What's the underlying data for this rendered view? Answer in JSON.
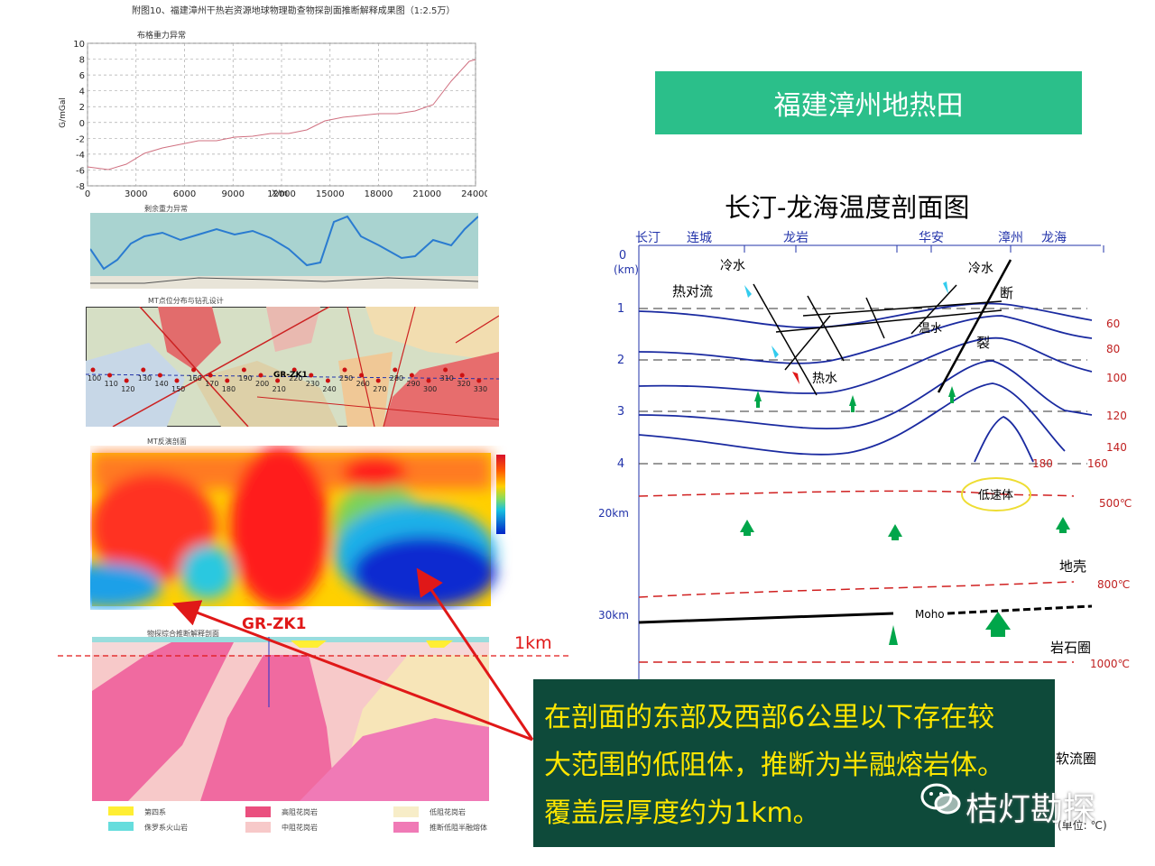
{
  "figure": {
    "caption": "附图10、福建漳州干热岩资源地球物理勘查物探剖面推断解释成果图（1:2.5万）"
  },
  "gravity_panel": {
    "title": "布格重力异常",
    "ylabel": "G/mGal",
    "xlabel": "X/m",
    "y_ticks": [
      "10",
      "8",
      "6",
      "4",
      "2",
      "0",
      "-2",
      "-4",
      "-6",
      "-8"
    ],
    "x_ticks": [
      "0",
      "3000",
      "6000",
      "9000",
      "12000",
      "15000",
      "18000",
      "21000",
      "24000"
    ]
  },
  "residual_panel": {
    "title": "剩余重力异常"
  },
  "mt_map_panel": {
    "title": "MT点位分布与钻孔设计",
    "well_label": "GR-ZK1",
    "station_labels": [
      "100",
      "110",
      "120",
      "130",
      "140",
      "150",
      "160",
      "170",
      "180",
      "190",
      "200",
      "210",
      "220",
      "230",
      "240",
      "250",
      "260",
      "270",
      "280",
      "290",
      "300",
      "310",
      "320",
      "330"
    ]
  },
  "mt_section_panel": {
    "title": "MT反演剖面"
  },
  "interp_panel": {
    "title": "物探综合推断解释剖面",
    "legend": [
      "第四系",
      "侏罗系火山岩",
      "高阻花岗岩",
      "中阻花岗岩",
      "低阻花岗岩",
      "推断低阻半融熔体"
    ]
  },
  "annotations": {
    "well": "GR-ZK1",
    "depth": "1km"
  },
  "right_header": {
    "title": "福建漳州地热田"
  },
  "profile": {
    "title": "长汀-龙海温度剖面图",
    "places": [
      "长汀",
      "连城",
      "龙岩",
      "华安",
      "漳州",
      "龙海"
    ],
    "depth_labels": [
      "0",
      "(km)",
      "1",
      "2",
      "3",
      "4",
      "20km",
      "30km"
    ],
    "isotherms": [
      "60",
      "80",
      "100",
      "120",
      "140",
      "160",
      "180",
      "500℃",
      "800℃",
      "1000℃"
    ],
    "labels": {
      "cold1": "冷水",
      "cold2": "冷水",
      "convection": "热对流",
      "warm": "温水",
      "hot": "热水",
      "fault1": "断",
      "fault2": "裂",
      "lowvel": "低速体",
      "crust": "地壳",
      "moho": "Moho",
      "lithosphere": "岩石圈",
      "asthenosphere": "软流圈",
      "unit": "(单位: ℃)"
    }
  },
  "callout": {
    "line1": "在剖面的东部及西部6公里以下存在较",
    "line2": "大范围的低阻体，推断为半融熔岩体。",
    "line3": "覆盖层厚度约为1km。"
  },
  "watermark": {
    "text": "桔灯勘探"
  }
}
